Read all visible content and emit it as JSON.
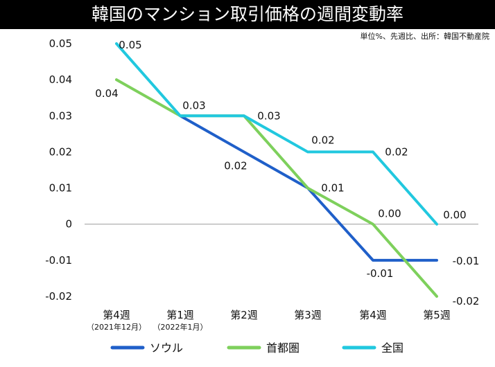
{
  "chart_data": {
    "type": "line",
    "title": "韓国のマンション取引価格の週間変動率",
    "note": "単位%、先週比、出所：韓国不動産院",
    "categories": [
      "第4週",
      "第1週",
      "第2週",
      "第3週",
      "第4週",
      "第5週"
    ],
    "subcategories": [
      "（2021年12月）",
      "（2022年1月）",
      "",
      "",
      "",
      ""
    ],
    "y_ticks": [
      "0.05",
      "0.04",
      "0.03",
      "0.02",
      "0.01",
      "0",
      "-0.01",
      "-0.02"
    ],
    "ylim": [
      -0.02,
      0.05
    ],
    "series": [
      {
        "name": "ソウル",
        "color": "#1f5fc9",
        "values": [
          null,
          0.03,
          0.02,
          0.01,
          -0.01,
          -0.01
        ],
        "labels": [
          "",
          "",
          "0.02",
          "",
          "-0.01",
          "-0.01"
        ]
      },
      {
        "name": "首都圏",
        "color": "#7ed05c",
        "values": [
          0.04,
          0.03,
          0.03,
          0.01,
          0.0,
          -0.02
        ],
        "labels": [
          "0.04",
          "",
          "",
          "0.01",
          "0.00",
          "-0.02"
        ]
      },
      {
        "name": "全国",
        "color": "#21c8df",
        "values": [
          0.05,
          0.03,
          0.03,
          0.02,
          0.02,
          0.0
        ],
        "labels": [
          "0.05",
          "0.03",
          "0.03",
          "0.02",
          "0.02",
          "0.00"
        ]
      }
    ]
  }
}
